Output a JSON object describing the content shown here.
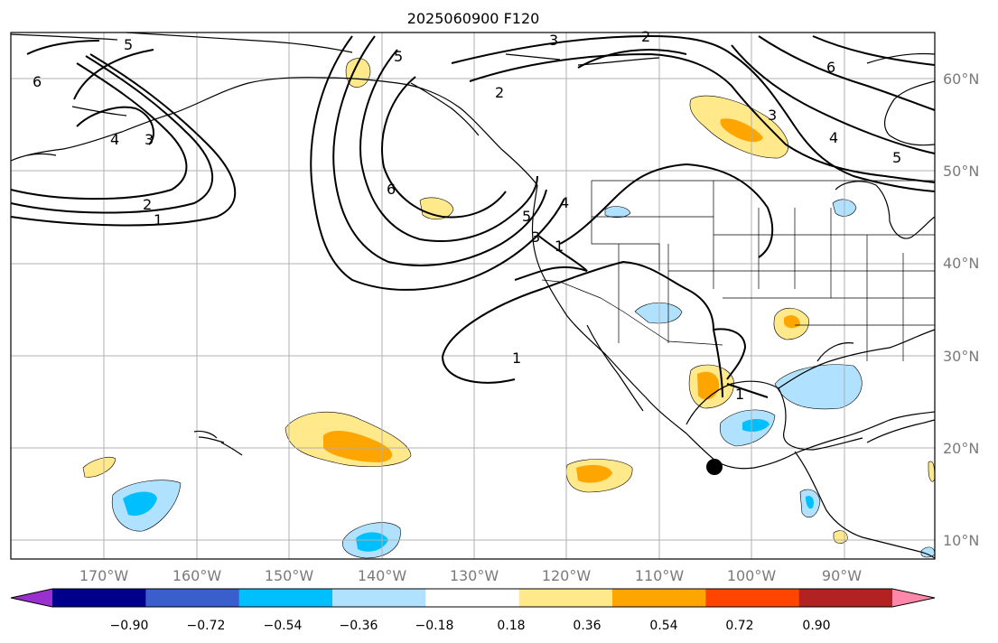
{
  "title": "2025060900 F120",
  "lon_ticks": [
    "170°W",
    "160°W",
    "150°W",
    "140°W",
    "130°W",
    "120°W",
    "110°W",
    "100°W",
    "90°W"
  ],
  "lat_ticks": [
    "60°N",
    "50°N",
    "40°N",
    "30°N",
    "20°N",
    "10°N"
  ],
  "colorbar": {
    "ticks": [
      "−0.90",
      "−0.72",
      "−0.54",
      "−0.36",
      "−0.18",
      "0.18",
      "0.36",
      "0.54",
      "0.72",
      "0.90"
    ],
    "colors": [
      "#9b30d0",
      "#00008b",
      "#3a5fcd",
      "#00bfff",
      "#b0e2ff",
      "#ffffff",
      "#ffe98a",
      "#ffa500",
      "#ff4500",
      "#b22222",
      "#ff88aa"
    ]
  },
  "contour_labels": {
    "l6a": "6",
    "l5a": "5",
    "l4a": "4",
    "l3a": "3",
    "l2a": "2",
    "l1a": "1",
    "l5b": "5",
    "l6b": "6",
    "l3b": "3",
    "l2b": "2",
    "l2c": "2",
    "l3c": "3",
    "l4c": "4",
    "l5c": "5",
    "l6c": "6",
    "l1d": "1",
    "l1e": "1",
    "l1f": "1",
    "l4d": "4",
    "l5d": "5",
    "l3d": "3"
  }
}
